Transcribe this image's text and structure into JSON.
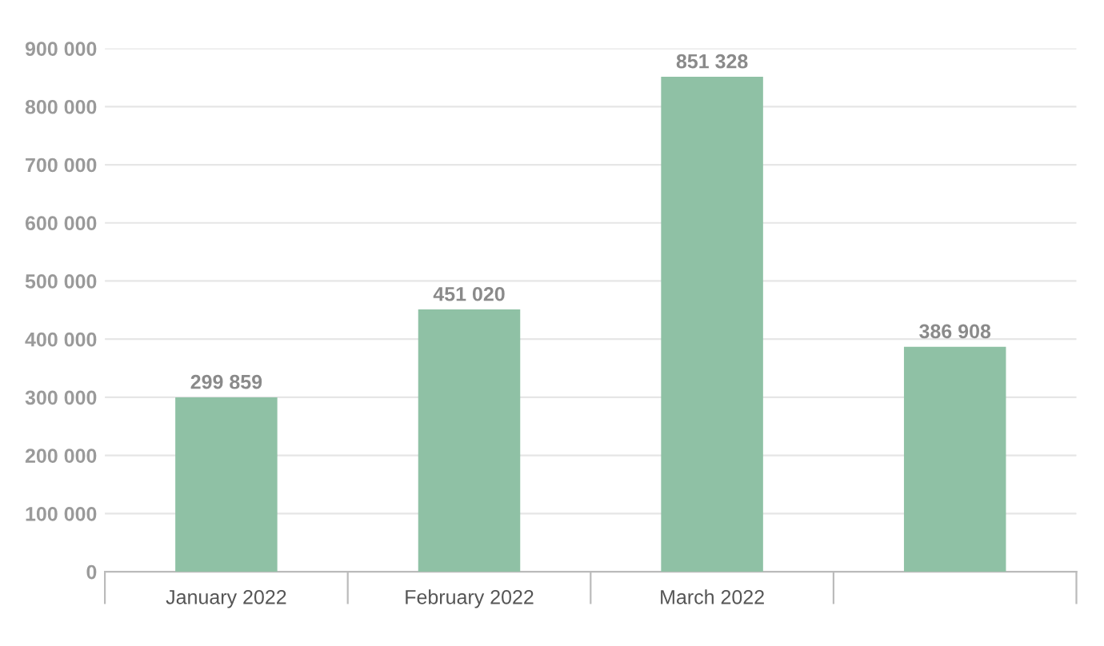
{
  "chart_data": {
    "type": "bar",
    "categories": [
      "January 2022",
      "February 2022",
      "March 2022",
      null
    ],
    "values": [
      299859,
      451020,
      851328,
      386908
    ],
    "value_labels": [
      "299 859",
      "451 020",
      "851 328",
      "386 908"
    ],
    "color": "#8fc1a5",
    "ylim": [
      0,
      900000
    ],
    "yticks": [
      {
        "value": 0,
        "label": "0"
      },
      {
        "value": 100000,
        "label": "100 000"
      },
      {
        "value": 200000,
        "label": "200 000"
      },
      {
        "value": 300000,
        "label": "300 000"
      },
      {
        "value": 400000,
        "label": "400 000"
      },
      {
        "value": 500000,
        "label": "500 000"
      },
      {
        "value": 600000,
        "label": "600 000"
      },
      {
        "value": 700000,
        "label": "700 000"
      },
      {
        "value": 800000,
        "label": "800 000"
      },
      {
        "value": 900000,
        "label": "900 000"
      }
    ],
    "grid": "y"
  }
}
